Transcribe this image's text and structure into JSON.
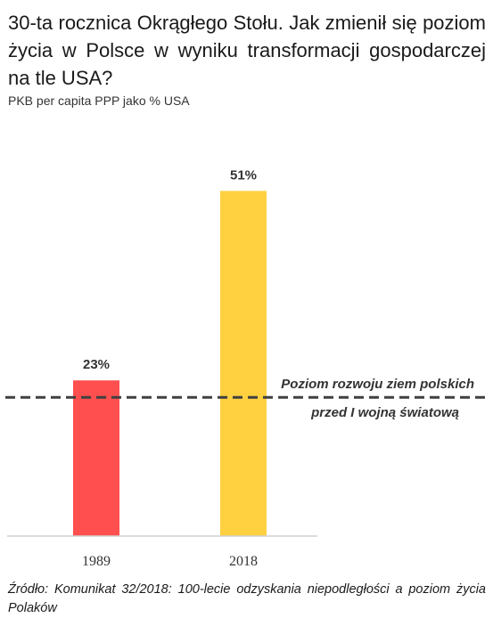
{
  "title": "30-ta rocznica Okrągłego Stołu. Jak zmienił się poziom życia w Polsce w wyniku transformacji gospodarczej na tle USA?",
  "subtitle": "PKB per capita PPP jako % USA",
  "source": "Źródło: Komunikat 32/2018: 100-lecie odzyskania niepodległości a poziom życia Polaków",
  "chart_data": {
    "type": "bar",
    "title": "30-ta rocznica Okrągłego Stołu. Jak zmienił się poziom życia w Polsce w wyniku transformacji gospodarczej na tle USA?",
    "subtitle": "PKB per capita PPP jako % USA",
    "categories": [
      "1989",
      "2018"
    ],
    "values": [
      23,
      51
    ],
    "value_labels": [
      "23%",
      "51%"
    ],
    "bar_colors": [
      "#FF4F4F",
      "#FFD040"
    ],
    "unit": "%",
    "ylim": [
      0,
      55
    ],
    "grid": false,
    "reference_line": {
      "value": 20.5,
      "style": "dashed",
      "color": "#404040",
      "label_lines": [
        "Poziom rozwoju ziem polskich",
        "przed I wojną światową"
      ]
    }
  }
}
